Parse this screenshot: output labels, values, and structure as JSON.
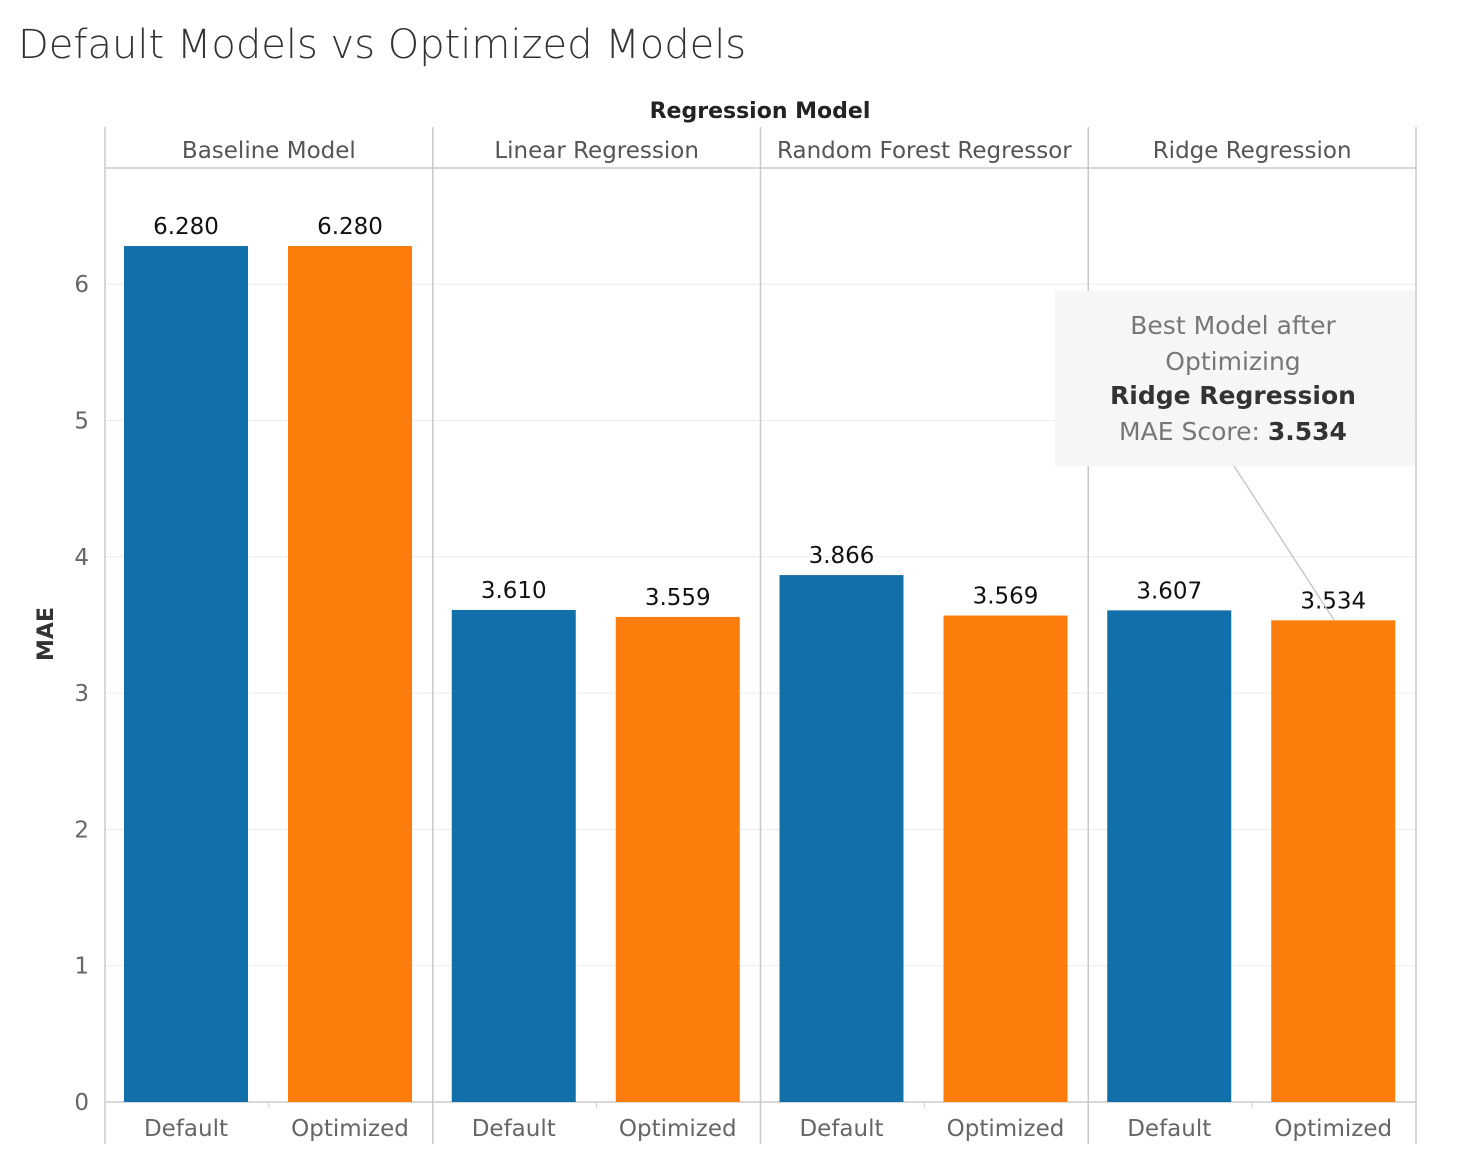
{
  "title": "Default Models vs Optimized Models",
  "chart_data": {
    "type": "bar",
    "column_header": "Regression Model",
    "ylabel": "MAE",
    "ylim": [
      0,
      7
    ],
    "yticks": [
      0,
      1,
      2,
      3,
      4,
      5,
      6
    ],
    "grid": true,
    "facets": [
      {
        "name": "Baseline Model",
        "categories": [
          "Default",
          "Optimized"
        ],
        "values": [
          6.28,
          6.28
        ],
        "labels": [
          "6.280",
          "6.280"
        ]
      },
      {
        "name": "Linear Regression",
        "categories": [
          "Default",
          "Optimized"
        ],
        "values": [
          3.61,
          3.559
        ],
        "labels": [
          "3.610",
          "3.559"
        ]
      },
      {
        "name": "Random Forest Regressor",
        "categories": [
          "Default",
          "Optimized"
        ],
        "values": [
          3.866,
          3.569
        ],
        "labels": [
          "3.866",
          "3.569"
        ]
      },
      {
        "name": "Ridge Regression",
        "categories": [
          "Default",
          "Optimized"
        ],
        "values": [
          3.607,
          3.534
        ],
        "labels": [
          "3.607",
          "3.534"
        ]
      }
    ],
    "colors": {
      "Default": "#1170aa",
      "Optimized": "#fc7d0b"
    }
  },
  "annotation": {
    "line1": "Best Model after",
    "line2": "Optimizing",
    "model": "Ridge Regression",
    "score_label": "MAE Score: ",
    "score_value": "3.534"
  }
}
